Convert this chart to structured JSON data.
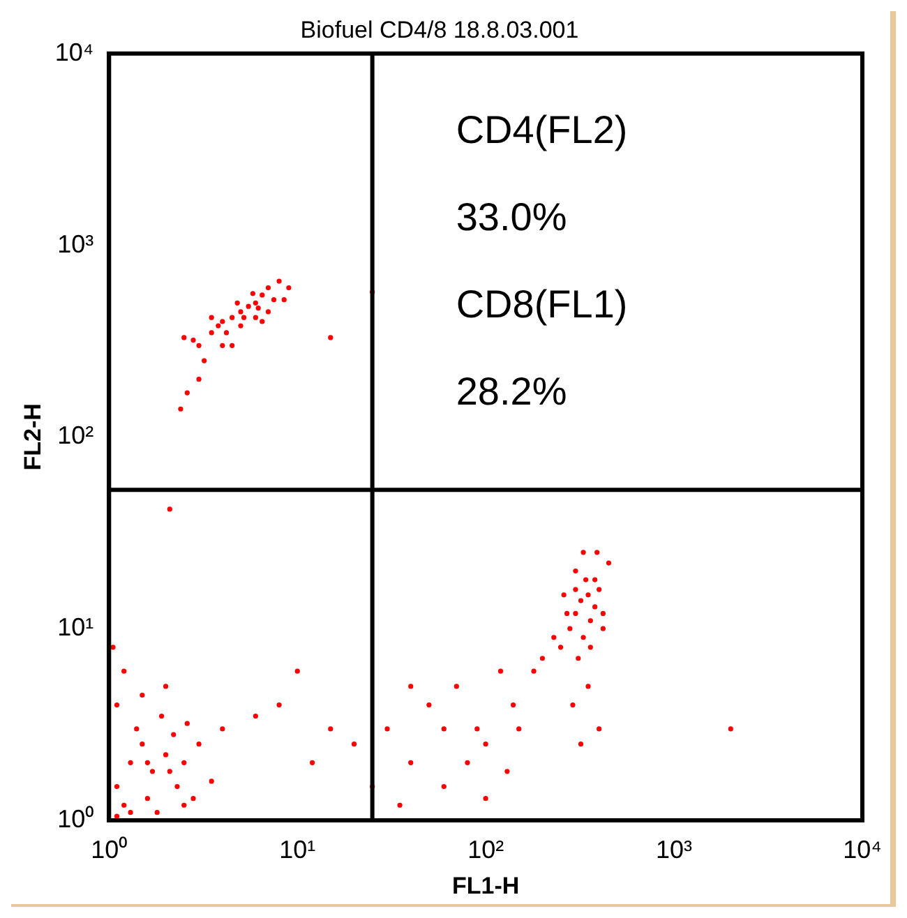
{
  "chart_data": {
    "type": "scatter",
    "title": "Biofuel CD4/8 18.8.03.001",
    "xlabel": "FL1-H",
    "ylabel": "FL2-H",
    "log": "xy",
    "xlim": [
      1,
      10000
    ],
    "ylim": [
      1,
      10000
    ],
    "xticks": [
      {
        "value": 1,
        "label": "10⁰"
      },
      {
        "value": 10,
        "label": "10¹"
      },
      {
        "value": 100,
        "label": "10²"
      },
      {
        "value": 1000,
        "label": "10³"
      },
      {
        "value": 10000,
        "label": "10⁴"
      }
    ],
    "yticks": [
      {
        "value": 1,
        "label": "10⁰"
      },
      {
        "value": 10,
        "label": "10¹"
      },
      {
        "value": 100,
        "label": "10²"
      },
      {
        "value": 1000,
        "label": "10³"
      },
      {
        "value": 10000,
        "label": "10⁴"
      }
    ],
    "grid": false,
    "legend": false,
    "marker": "circle",
    "color": "#ff0000",
    "x": [
      3,
      3.5,
      4,
      4.5,
      5,
      5.5,
      6,
      6.5,
      7,
      8,
      4,
      4.2,
      3.8,
      5,
      5.2,
      6,
      6.2,
      7,
      7.5,
      3.2,
      2.8,
      2.5,
      4.8,
      5.8,
      3,
      2.6,
      3.5,
      4.5,
      6.5,
      8.5,
      9,
      2.4,
      15,
      25,
      2.1,
      300,
      320,
      350,
      280,
      330,
      360,
      380,
      400,
      340,
      300,
      250,
      270,
      310,
      360,
      420,
      450,
      390,
      330,
      260,
      230,
      200,
      180,
      380,
      300,
      420,
      350,
      290,
      320,
      400,
      30,
      40,
      50,
      60,
      70,
      80,
      90,
      100,
      120,
      140,
      150,
      40,
      25,
      35,
      60,
      100,
      130,
      20,
      15,
      12,
      10,
      8,
      6,
      2000,
      1.1,
      1.3,
      1.5,
      1.7,
      2,
      2.3,
      2.5,
      1.2,
      1.4,
      1.6,
      1.9,
      2.2,
      2.8,
      3,
      1.1,
      1.3,
      1.8,
      2.5,
      3.5,
      4,
      1.5,
      2,
      1.2,
      1.05,
      1.1,
      1.6,
      2.1,
      2.6
    ],
    "values": [
      300,
      350,
      400,
      420,
      450,
      480,
      500,
      550,
      600,
      650,
      300,
      350,
      380,
      380,
      420,
      420,
      470,
      450,
      520,
      250,
      320,
      330,
      500,
      560,
      200,
      170,
      420,
      300,
      400,
      520,
      600,
      140,
      330,
      570,
      42,
      12,
      14,
      15,
      10,
      9,
      11,
      13,
      16,
      18,
      20,
      8,
      12,
      7,
      8,
      12,
      22,
      25,
      25,
      15,
      9,
      7,
      6,
      18,
      16,
      10,
      5,
      4,
      2.5,
      3,
      3,
      2,
      4,
      3,
      5,
      2,
      3,
      2.5,
      6,
      4,
      3,
      5,
      1.5,
      1.2,
      1.5,
      1.3,
      1.8,
      2.5,
      3,
      2,
      6,
      4,
      3.5,
      3,
      1.5,
      2,
      2.5,
      1.8,
      2.2,
      1.5,
      2,
      1.2,
      3,
      1.3,
      3.5,
      2.8,
      1.3,
      2.5,
      4,
      1.1,
      1.1,
      1.2,
      1.6,
      3,
      4.5,
      5,
      6,
      8,
      1.05,
      2,
      1.8,
      3.2
    ],
    "ref_lines": [
      {
        "axis": "x",
        "value": 25,
        "color": "#000000"
      },
      {
        "axis": "y",
        "value": 53,
        "color": "#000000"
      }
    ],
    "annotations": [
      "CD4(FL2)",
      "33.0%",
      "CD8(FL1)",
      "28.2%"
    ]
  }
}
